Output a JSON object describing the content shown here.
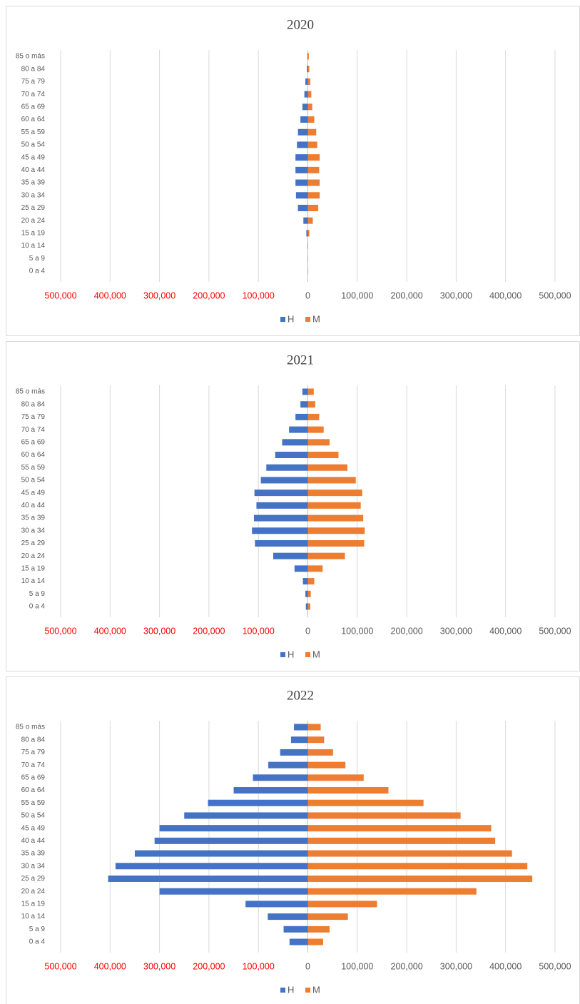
{
  "chart_data": [
    {
      "type": "bar",
      "orientation": "horizontal",
      "title": "2020",
      "categories": [
        "85 o más",
        "80 a 84",
        "75 a 79",
        "70 a 74",
        "65 a 69",
        "60 a 64",
        "55 a 59",
        "50 a 54",
        "45 a 49",
        "40 a 44",
        "35 a 39",
        "30 a 34",
        "25 a 29",
        "20 a 24",
        "15 a 19",
        "10 a 14",
        "5 a 9",
        "0 a 4"
      ],
      "series": [
        {
          "name": "H",
          "color": "#4472c4",
          "values": [
            -1000,
            -2000,
            -5000,
            -7000,
            -11000,
            -15000,
            -20000,
            -22000,
            -25000,
            -25000,
            -25000,
            -24000,
            -20000,
            -9000,
            -3000,
            -500,
            -200,
            -200
          ]
        },
        {
          "name": "M",
          "color": "#ed7d31",
          "values": [
            2000,
            3000,
            5000,
            7000,
            9000,
            13000,
            17000,
            19000,
            24000,
            23000,
            24000,
            24000,
            21000,
            10000,
            3000,
            500,
            300,
            300
          ]
        }
      ],
      "xlim": [
        -500000,
        500000
      ],
      "xticks": [
        {
          "value": -500000,
          "label": "500,000"
        },
        {
          "value": -400000,
          "label": "400,000"
        },
        {
          "value": -300000,
          "label": "300,000"
        },
        {
          "value": -200000,
          "label": "200,000"
        },
        {
          "value": -100000,
          "label": "100,000"
        },
        0,
        {
          "value": 100000,
          "label": "100,000"
        },
        {
          "value": 200000,
          "label": "200,000"
        },
        {
          "value": 300000,
          "label": "300,000"
        },
        {
          "value": 400000,
          "label": "400,000"
        },
        {
          "value": 500000,
          "label": "500,000"
        }
      ],
      "negative_tick_label_color": "#ff0000",
      "grid": true,
      "legend": "bottom"
    },
    {
      "type": "bar",
      "orientation": "horizontal",
      "title": "2021",
      "categories": [
        "85 o más",
        "80 a 84",
        "75 a 79",
        "70 a 74",
        "65 a 69",
        "60 a 64",
        "55 a 59",
        "50 a 54",
        "45 a 49",
        "40 a 44",
        "35 a 39",
        "30 a 34",
        "25 a 29",
        "20 a 24",
        "15 a 19",
        "10 a 14",
        "5 a 9",
        "0 a 4"
      ],
      "series": [
        {
          "name": "H",
          "color": "#4472c4",
          "values": [
            -11000,
            -15000,
            -25000,
            -38000,
            -52000,
            -66000,
            -84000,
            -95000,
            -108000,
            -104000,
            -109000,
            -113000,
            -107000,
            -70000,
            -27000,
            -10000,
            -5000,
            -4000
          ]
        },
        {
          "name": "M",
          "color": "#ed7d31",
          "values": [
            12000,
            15000,
            23000,
            32000,
            44000,
            62000,
            80000,
            97000,
            110000,
            107000,
            112000,
            115000,
            114000,
            75000,
            30000,
            13000,
            6000,
            5000
          ]
        }
      ],
      "xlim": [
        -500000,
        500000
      ],
      "xticks": [
        {
          "value": -500000,
          "label": "500,000"
        },
        {
          "value": -400000,
          "label": "400,000"
        },
        {
          "value": -300000,
          "label": "300,000"
        },
        {
          "value": -200000,
          "label": "200,000"
        },
        {
          "value": -100000,
          "label": "100,000"
        },
        0,
        {
          "value": 100000,
          "label": "100,000"
        },
        {
          "value": 200000,
          "label": "200,000"
        },
        {
          "value": 300000,
          "label": "300,000"
        },
        {
          "value": 400000,
          "label": "400,000"
        },
        {
          "value": 500000,
          "label": "500,000"
        }
      ],
      "negative_tick_label_color": "#ff0000",
      "grid": true,
      "legend": "bottom"
    },
    {
      "type": "bar",
      "orientation": "horizontal",
      "title": "2022",
      "categories": [
        "85 o más",
        "80 a 84",
        "75 a 79",
        "70 a 74",
        "65 a 69",
        "60 a 64",
        "55 a 59",
        "50 a 54",
        "45 a 49",
        "40 a 44",
        "35 a 39",
        "30 a 34",
        "25 a 29",
        "20 a 24",
        "15 a 19",
        "10 a 14",
        "5 a 9",
        "0 a 4"
      ],
      "series": [
        {
          "name": "H",
          "color": "#4472c4",
          "values": [
            -28000,
            -34000,
            -56000,
            -80000,
            -111000,
            -150000,
            -202000,
            -250000,
            -300000,
            -310000,
            -350000,
            -389000,
            -404000,
            -300000,
            -126000,
            -81000,
            -49000,
            -37000
          ]
        },
        {
          "name": "M",
          "color": "#ed7d31",
          "values": [
            26000,
            33000,
            51000,
            76000,
            113000,
            163000,
            234000,
            309000,
            371000,
            379000,
            413000,
            444000,
            454000,
            341000,
            140000,
            81000,
            44000,
            31000
          ]
        }
      ],
      "xlim": [
        -500000,
        500000
      ],
      "xticks": [
        {
          "value": -500000,
          "label": "500,000"
        },
        {
          "value": -400000,
          "label": "400,000"
        },
        {
          "value": -300000,
          "label": "300,000"
        },
        {
          "value": -200000,
          "label": "200,000"
        },
        {
          "value": -100000,
          "label": "100,000"
        },
        0,
        {
          "value": 100000,
          "label": "100,000"
        },
        {
          "value": 200000,
          "label": "200,000"
        },
        {
          "value": 300000,
          "label": "300,000"
        },
        {
          "value": 400000,
          "label": "400,000"
        },
        {
          "value": 500000,
          "label": "500,000"
        }
      ],
      "negative_tick_label_color": "#ff0000",
      "grid": true,
      "legend": "bottom"
    }
  ]
}
